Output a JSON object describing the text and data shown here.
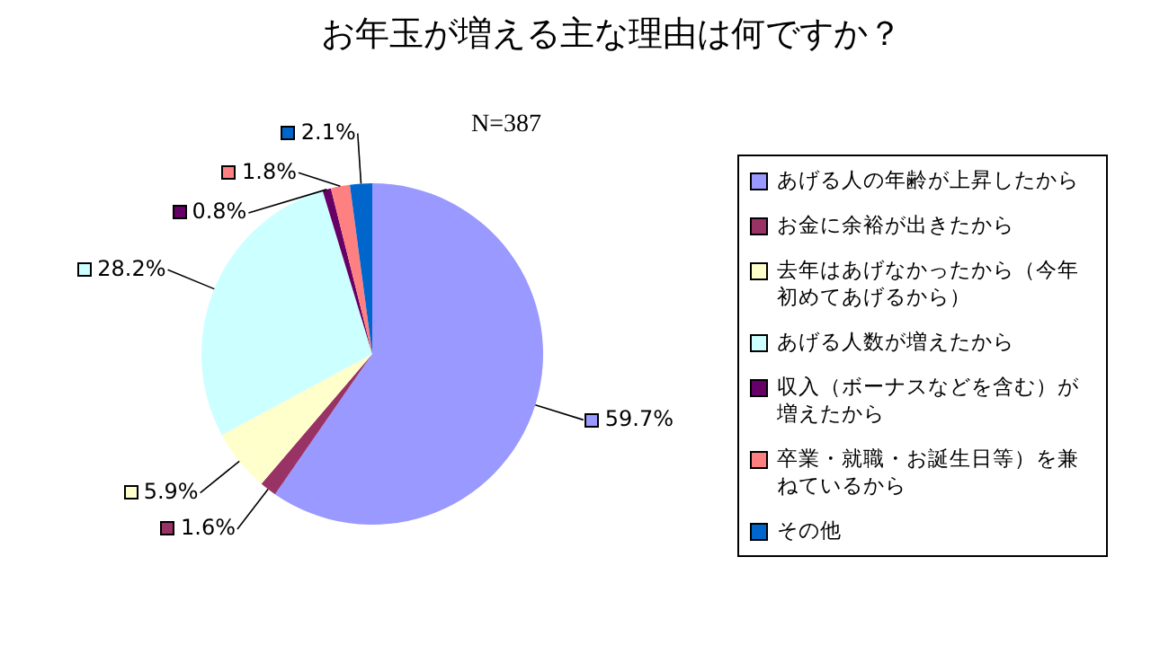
{
  "chart_data": {
    "type": "pie",
    "title": "お年玉が増える主な理由は何ですか？",
    "categories": [
      "あげる人の年齢が上昇したから",
      "お金に余裕が出きたから",
      "去年はあげなかったから（今年初めてあげるから）",
      "あげる人数が増えたから",
      "収入（ボーナスなどを含む）が増えたから",
      "卒業・就職・お誕生日等）を兼ねているから",
      "その他"
    ],
    "values": [
      59.7,
      1.6,
      5.9,
      28.2,
      0.8,
      1.8,
      2.1
    ],
    "value_labels": [
      "59.7%",
      "1.6%",
      "5.9%",
      "28.2%",
      "0.8%",
      "1.8%",
      "2.1%"
    ],
    "colors": [
      "#9999ff",
      "#993366",
      "#ffffcc",
      "#ccffff",
      "#660066",
      "#ff8080",
      "#0066cc"
    ],
    "legend": "right",
    "annotations": [
      "N=387"
    ]
  }
}
